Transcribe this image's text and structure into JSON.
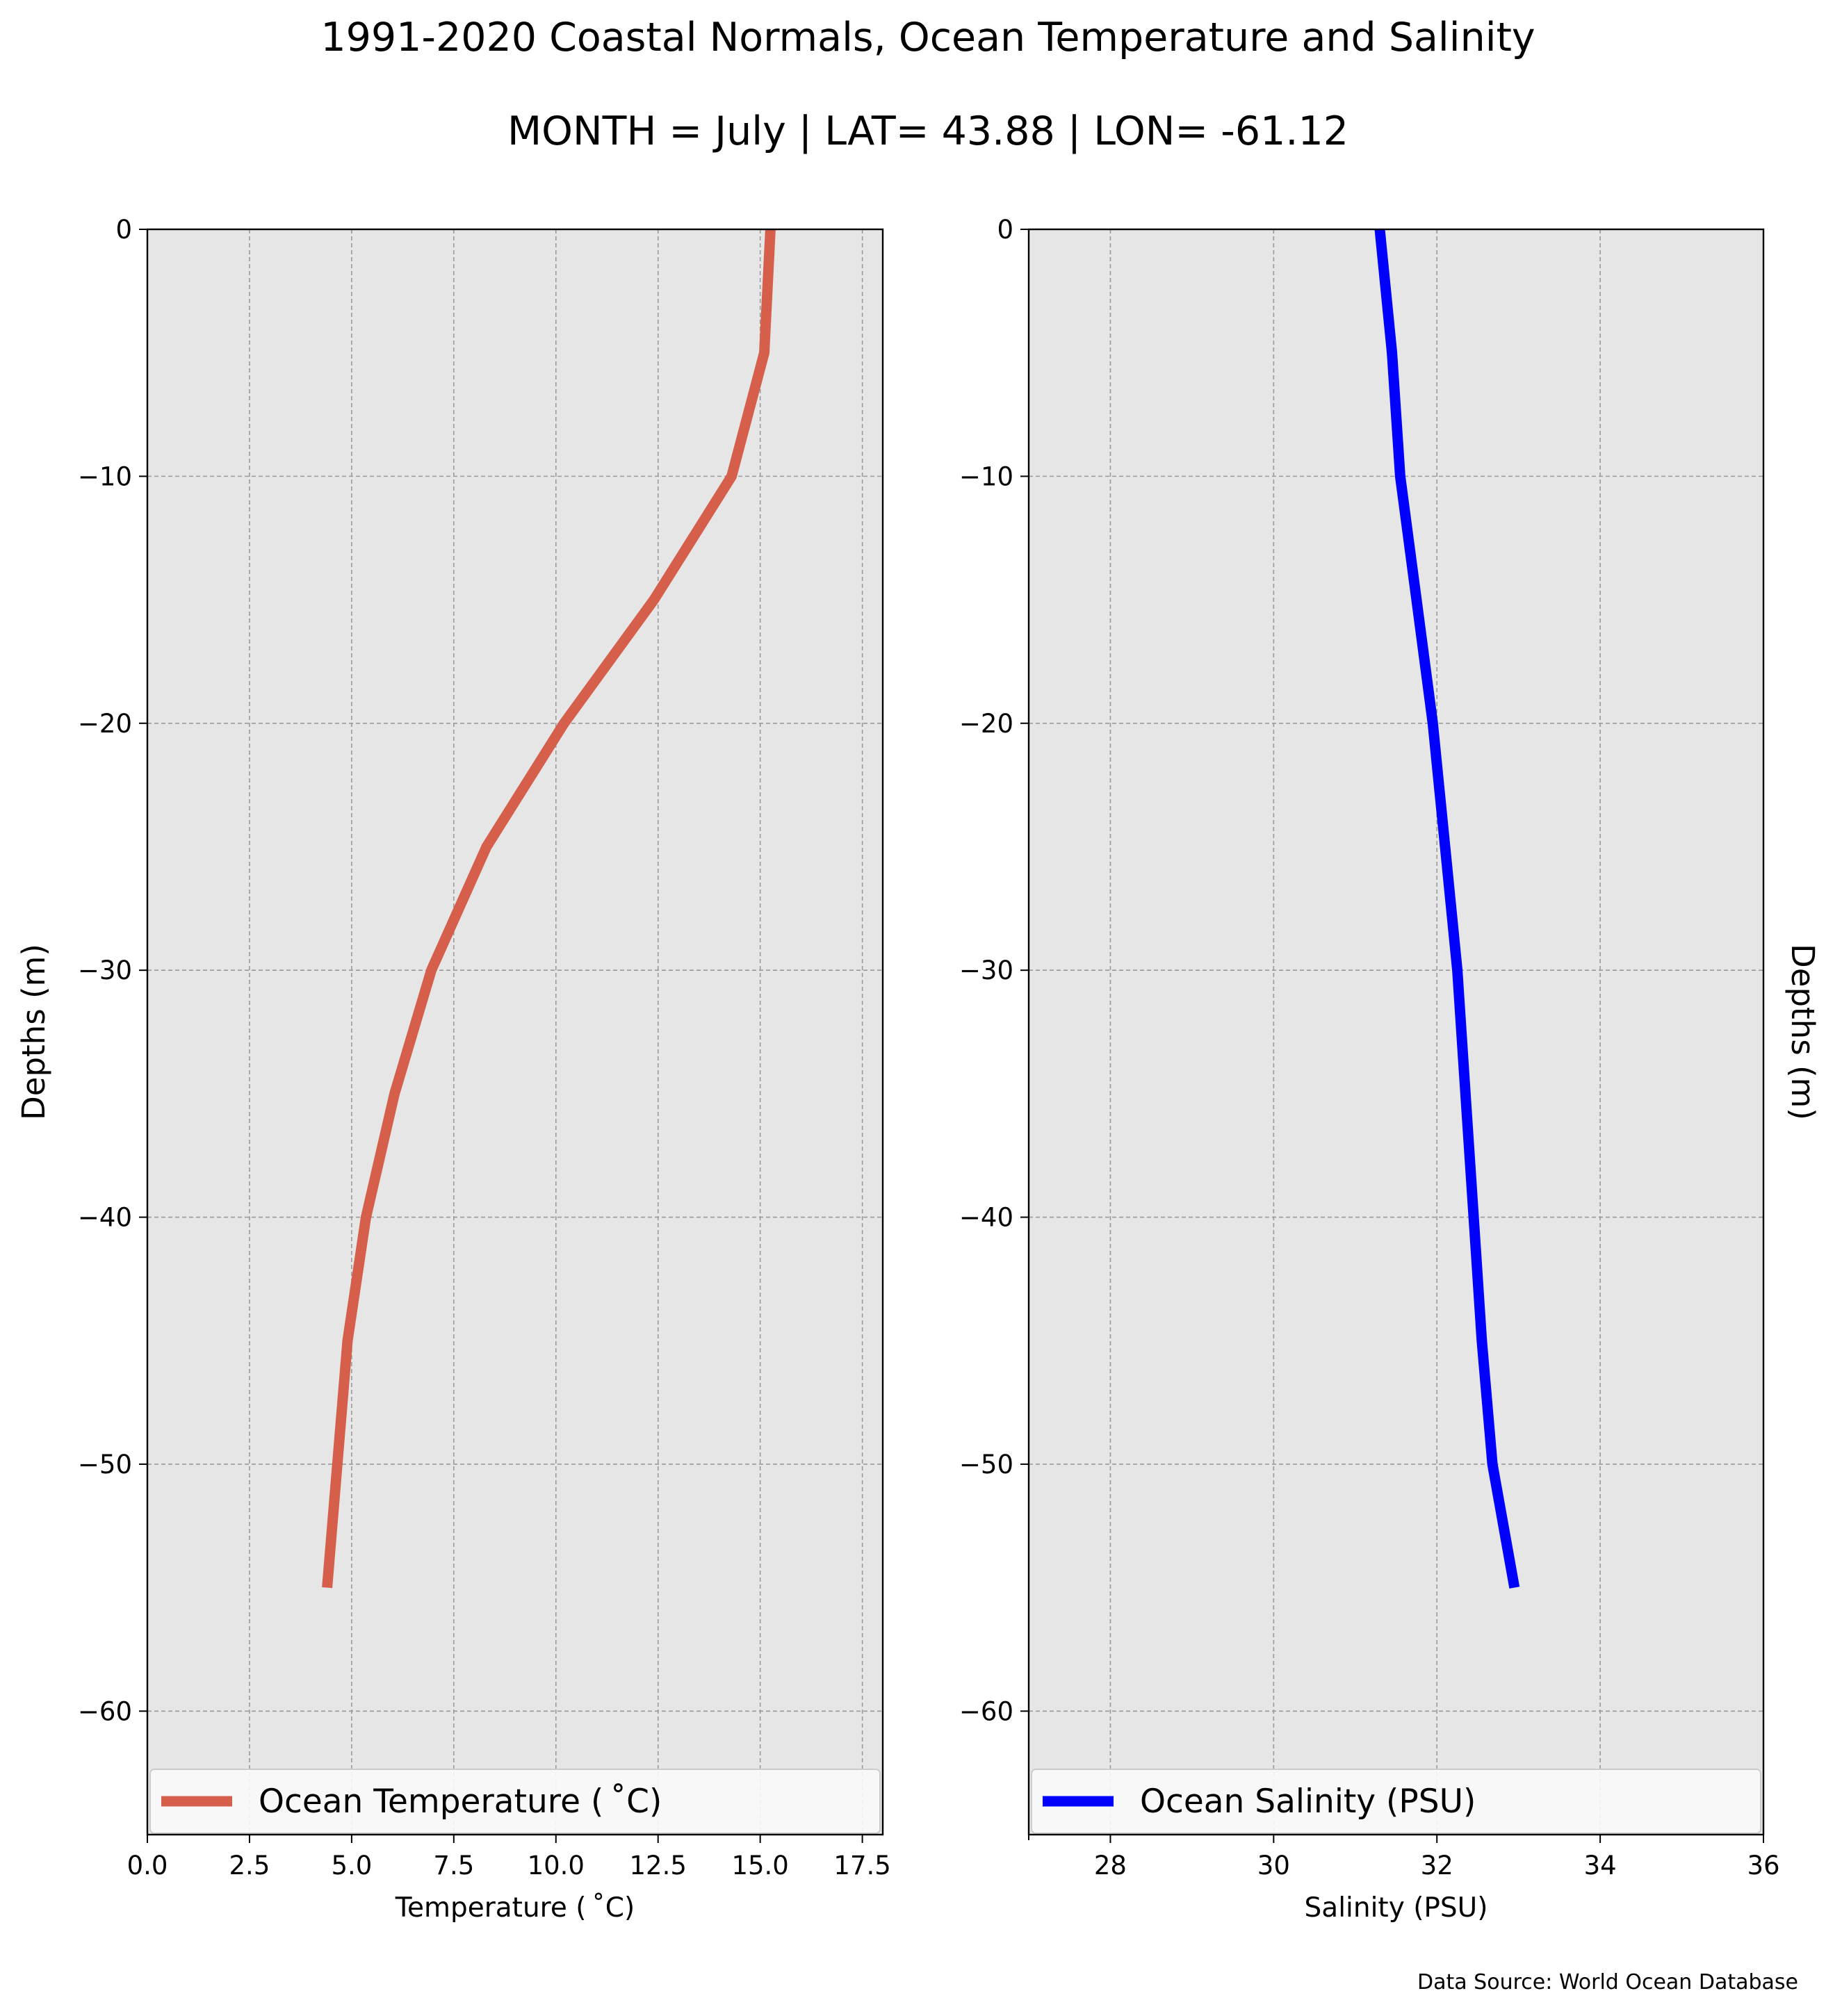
{
  "figure": {
    "title": "1991-2020 Coastal Normals, Ocean Temperature and Salinity",
    "subtitle": "MONTH = July | LAT= 43.88 | LON= -61.12",
    "source": "Data Source: World Ocean Database"
  },
  "chart_data": [
    {
      "type": "line",
      "xlabel": "Temperature ($^\\circ$C)",
      "xlabel_display": "Temperature ( ˚C)",
      "ylabel": "Depths (m)",
      "ylabel_position": "left",
      "xlim": [
        0,
        18
      ],
      "ylim": [
        -65,
        0
      ],
      "xticks": [
        0.0,
        2.5,
        5.0,
        7.5,
        10.0,
        12.5,
        15.0,
        17.5
      ],
      "xtick_labels": [
        "0.0",
        "2.5",
        "5.0",
        "7.5",
        "10.0",
        "12.5",
        "15.0",
        "17.5"
      ],
      "yticks": [
        0,
        -10,
        -20,
        -30,
        -40,
        -50,
        -60
      ],
      "ytick_labels": [
        "0",
        "−10",
        "−20",
        "−30",
        "−40",
        "−50",
        "−60"
      ],
      "grid": true,
      "background": "#e6e6e6",
      "legend_position": "bottom",
      "series": [
        {
          "name": "Ocean Temperature ( ˚C)",
          "color": "#d65f4c",
          "x": [
            15.25,
            15.1,
            14.3,
            12.4,
            10.2,
            8.3,
            6.95,
            6.05,
            5.35,
            4.9,
            4.65,
            4.4
          ],
          "y": [
            0,
            -5,
            -10,
            -15,
            -20,
            -25,
            -30,
            -35,
            -40,
            -45,
            -50,
            -55
          ]
        }
      ]
    },
    {
      "type": "line",
      "xlabel": "Salinity (PSU)",
      "ylabel": "Depths (m)",
      "ylabel_position": "right",
      "xlim": [
        27,
        36
      ],
      "ylim": [
        -65,
        0
      ],
      "xticks": [
        28,
        30,
        32,
        34,
        36
      ],
      "xtick_labels": [
        "28",
        "30",
        "32",
        "34",
        "36"
      ],
      "yticks": [
        0,
        -10,
        -20,
        -30,
        -40,
        -50,
        -60
      ],
      "ytick_labels": [
        "0",
        "−10",
        "−20",
        "−30",
        "−40",
        "−50",
        "−60"
      ],
      "grid": true,
      "background": "#e6e6e6",
      "legend_position": "bottom",
      "series": [
        {
          "name": "Ocean Salinity (PSU)",
          "color": "#0000ff",
          "x": [
            31.3,
            31.45,
            31.55,
            31.75,
            31.95,
            32.1,
            32.25,
            32.35,
            32.45,
            32.55,
            32.68,
            32.95
          ],
          "y": [
            0,
            -5,
            -10,
            -15,
            -20,
            -25,
            -30,
            -35,
            -40,
            -45,
            -50,
            -55
          ]
        }
      ]
    }
  ]
}
